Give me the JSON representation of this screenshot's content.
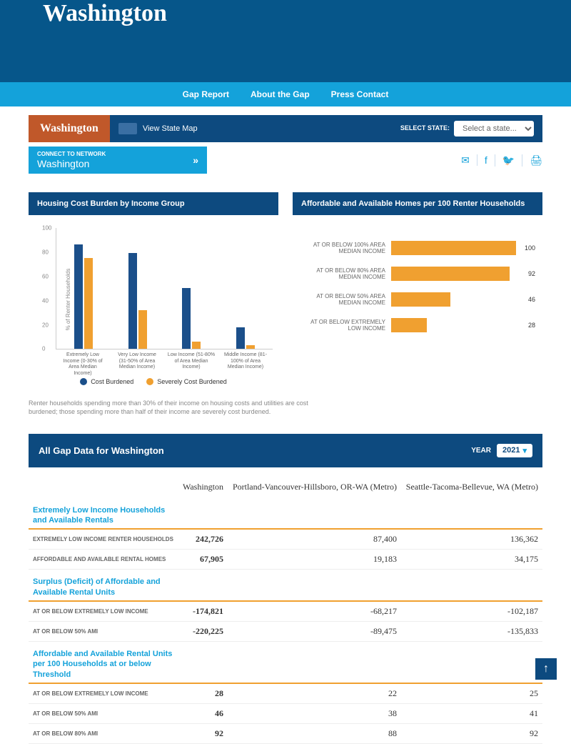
{
  "hero": {
    "title": "Washington"
  },
  "nav": {
    "items": [
      "Gap Report",
      "About the Gap",
      "Press Contact"
    ]
  },
  "statebar": {
    "current": "Washington",
    "map_label": "View State Map",
    "select_label": "SELECT STATE:",
    "select_placeholder": "Select a state..."
  },
  "connect": {
    "small": "CONNECT TO NETWORK",
    "state": "Washington"
  },
  "chart1": {
    "title": "Housing Cost Burden by Income Group",
    "type": "grouped-bar",
    "y_label": "% of Renter Households",
    "ylim": [
      0,
      100
    ],
    "ytick_step": 20,
    "categories": [
      "Extremely Low Income (0-30% of Area Median Income)",
      "Very Low Income (31-50% of Area Median Income)",
      "Low Income (51-80% of Area Median Income)",
      "Middle Income (81-100% of Area Median Income)"
    ],
    "series": [
      {
        "name": "Cost Burdened",
        "color": "#1b4f8a",
        "values": [
          86,
          79,
          50,
          18
        ]
      },
      {
        "name": "Severely Cost Burdened",
        "color": "#f0a030",
        "values": [
          75,
          32,
          6,
          3
        ]
      }
    ],
    "footnote": "Renter households spending more than 30% of their income on housing costs and utilities are cost burdened; those spending more than half of their income are severely cost burdened."
  },
  "chart2": {
    "title": "Affordable and Available Homes per 100 Renter Households",
    "type": "horizontal-bar",
    "bar_color": "#f0a030",
    "xmax": 100,
    "rows": [
      {
        "label": "AT OR BELOW 100% AREA MEDIAN INCOME",
        "value": 100
      },
      {
        "label": "AT OR BELOW 80% AREA MEDIAN INCOME",
        "value": 92
      },
      {
        "label": "AT OR BELOW 50% AREA MEDIAN INCOME",
        "value": 46
      },
      {
        "label": "AT OR BELOW EXTREMELY LOW INCOME",
        "value": 28
      }
    ]
  },
  "gap": {
    "title": "All Gap Data for Washington",
    "year_label": "YEAR",
    "year": "2021",
    "columns": [
      "",
      "Washington",
      "Portland-Vancouver-Hillsboro, OR-WA (Metro)",
      "Seattle-Tacoma-Bellevue, WA (Metro)"
    ],
    "sections": [
      {
        "heading": "Extremely Low Income Households and Available Rentals",
        "rows": [
          {
            "label": "EXTREMELY LOW INCOME RENTER HOUSEHOLDS",
            "cells": [
              "242,726",
              "87,400",
              "136,362"
            ]
          },
          {
            "label": "AFFORDABLE AND AVAILABLE RENTAL HOMES",
            "cells": [
              "67,905",
              "19,183",
              "34,175"
            ]
          }
        ]
      },
      {
        "heading": "Surplus (Deficit) of Affordable and Available Rental Units",
        "rows": [
          {
            "label": "AT OR BELOW EXTREMELY LOW INCOME",
            "cells": [
              "-174,821",
              "-68,217",
              "-102,187"
            ]
          },
          {
            "label": "AT OR BELOW 50% AMI",
            "cells": [
              "-220,225",
              "-89,475",
              "-135,833"
            ]
          }
        ]
      },
      {
        "heading": "Affordable and Available Rental Units per 100 Households at or below Threshold",
        "rows": [
          {
            "label": "AT OR BELOW EXTREMELY LOW INCOME",
            "cells": [
              "28",
              "22",
              "25"
            ]
          },
          {
            "label": "AT OR BELOW 50% AMI",
            "cells": [
              "46",
              "38",
              "41"
            ]
          },
          {
            "label": "AT OR BELOW 80% AMI",
            "cells": [
              "92",
              "88",
              "92"
            ]
          }
        ]
      }
    ]
  },
  "colors": {
    "primary": "#0d4a7f",
    "accent": "#14a2da",
    "orange": "#f0a030",
    "rust": "#c0582a"
  }
}
